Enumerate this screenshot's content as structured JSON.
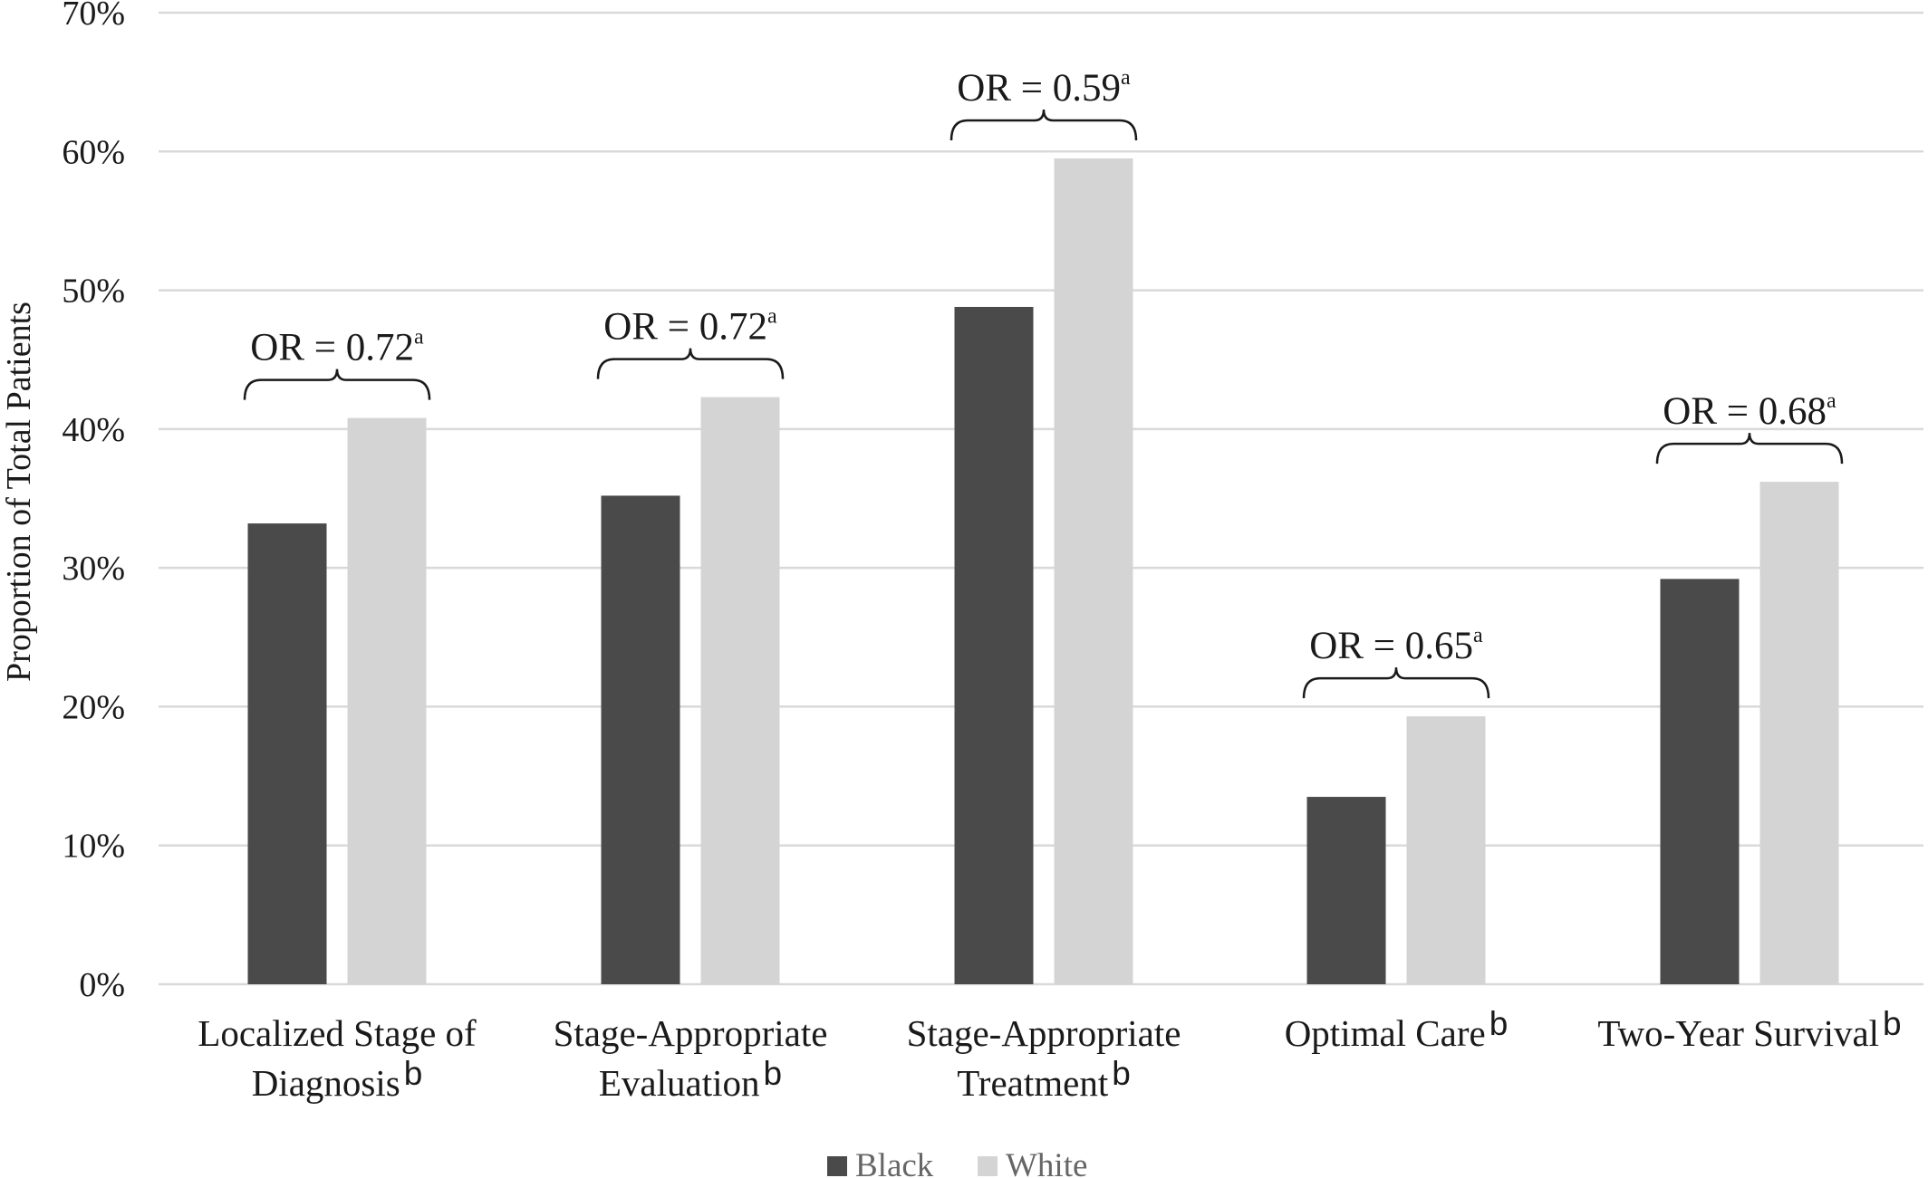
{
  "chart_data": {
    "type": "bar",
    "ylabel": "Proportion of Total Patients",
    "ylim": [
      0,
      70
    ],
    "yticks": [
      "0%",
      "10%",
      "20%",
      "30%",
      "40%",
      "50%",
      "60%",
      "70%"
    ],
    "grid": true,
    "legend_position": "bottom-center",
    "categories": [
      {
        "lines": [
          "Localized Stage of",
          "Diagnosis"
        ],
        "superscript": "b"
      },
      {
        "lines": [
          "Stage-Appropriate",
          "Evaluation"
        ],
        "superscript": "b"
      },
      {
        "lines": [
          "Stage-Appropriate",
          "Treatment"
        ],
        "superscript": "b"
      },
      {
        "lines": [
          "Optimal Care"
        ],
        "superscript": "b"
      },
      {
        "lines": [
          "Two-Year Survival"
        ],
        "superscript": "b"
      }
    ],
    "series": [
      {
        "name": "Black",
        "color": "#4a4a4a",
        "values": [
          33.2,
          35.2,
          48.8,
          13.5,
          29.2
        ]
      },
      {
        "name": "White",
        "color": "#d4d4d4",
        "values": [
          40.8,
          42.3,
          59.5,
          19.3,
          36.2
        ]
      }
    ],
    "annotations": [
      {
        "category_index": 0,
        "text": "OR = 0.72",
        "superscript": "a"
      },
      {
        "category_index": 1,
        "text": "OR = 0.72",
        "superscript": "a"
      },
      {
        "category_index": 2,
        "text": "OR = 0.59",
        "superscript": "a"
      },
      {
        "category_index": 3,
        "text": "OR = 0.65",
        "superscript": "a"
      },
      {
        "category_index": 4,
        "text": "OR = 0.68",
        "superscript": "a"
      }
    ]
  }
}
